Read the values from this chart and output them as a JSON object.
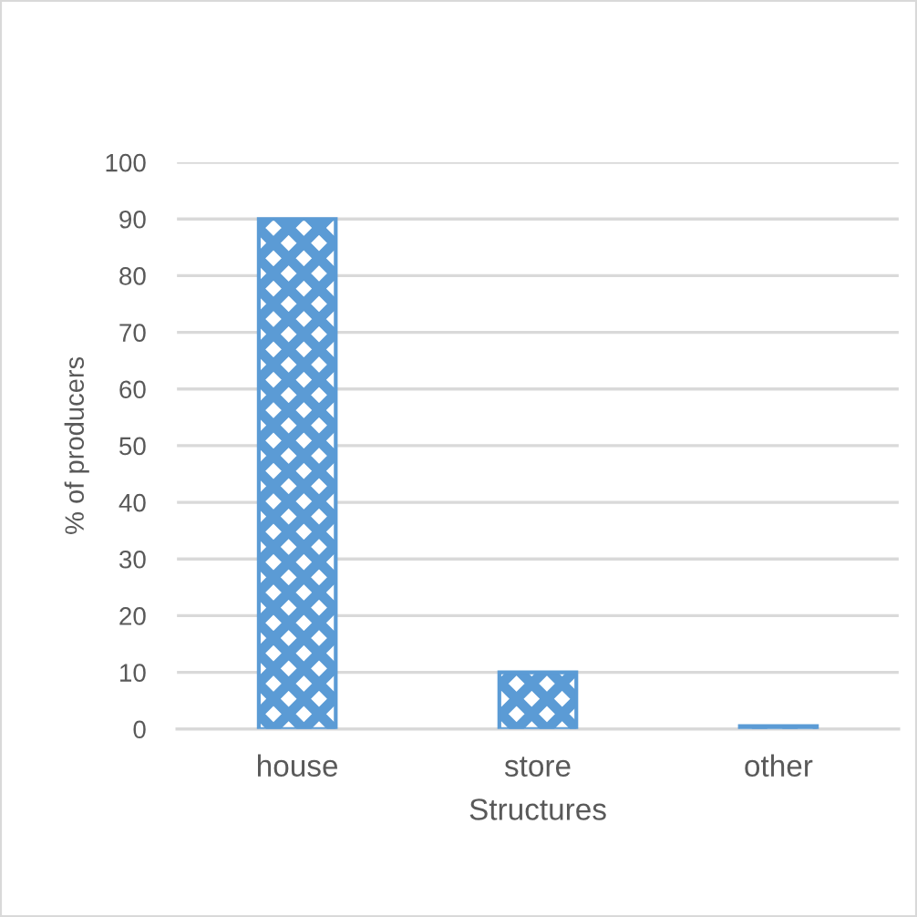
{
  "chart_data": {
    "type": "bar",
    "xlabel": "Structures",
    "ylabel": "% of producers",
    "categories": [
      "house",
      "store",
      "other"
    ],
    "values": [
      90,
      10,
      0.5
    ],
    "color": "#5b9bd5",
    "ylim": [
      0,
      100
    ],
    "yticks": [
      0,
      10,
      20,
      30,
      40,
      50,
      60,
      70,
      80,
      90,
      100
    ],
    "grid": "y",
    "legend": false
  }
}
